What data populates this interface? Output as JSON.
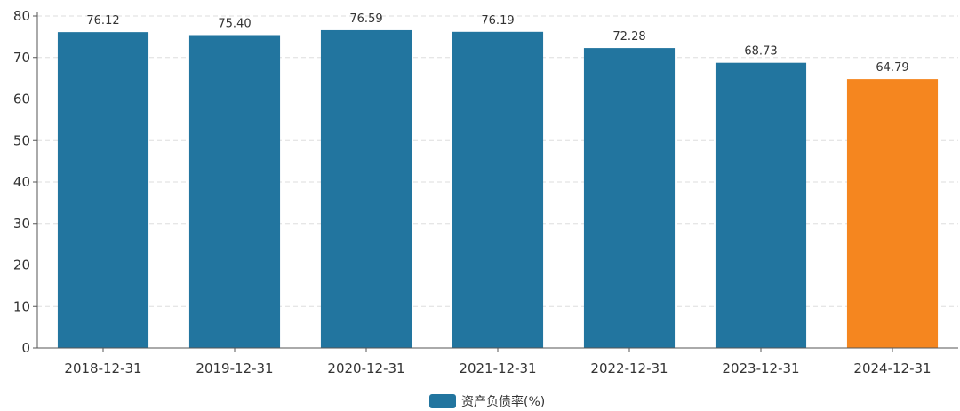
{
  "chart_data": {
    "type": "bar",
    "categories": [
      "2018-12-31",
      "2019-12-31",
      "2020-12-31",
      "2021-12-31",
      "2022-12-31",
      "2023-12-31",
      "2024-12-31"
    ],
    "series": [
      {
        "name": "资产负债率(%)",
        "values": [
          76.12,
          75.4,
          76.59,
          76.19,
          72.28,
          68.73,
          64.79
        ],
        "value_labels": [
          "76.12",
          "75.40",
          "76.59",
          "76.19",
          "72.28",
          "68.73",
          "64.79"
        ]
      }
    ],
    "ylim": [
      0,
      80
    ],
    "yticks": [
      0,
      10,
      20,
      30,
      40,
      50,
      60,
      70,
      80
    ],
    "grid": "horizontal-dashed",
    "legend_position": "bottom-center",
    "colors": {
      "default_bar": "#22759f",
      "highlight_bar": "#f5861f",
      "axis": "#555555",
      "grid": "#dddddd"
    },
    "highlight_index": 6
  }
}
